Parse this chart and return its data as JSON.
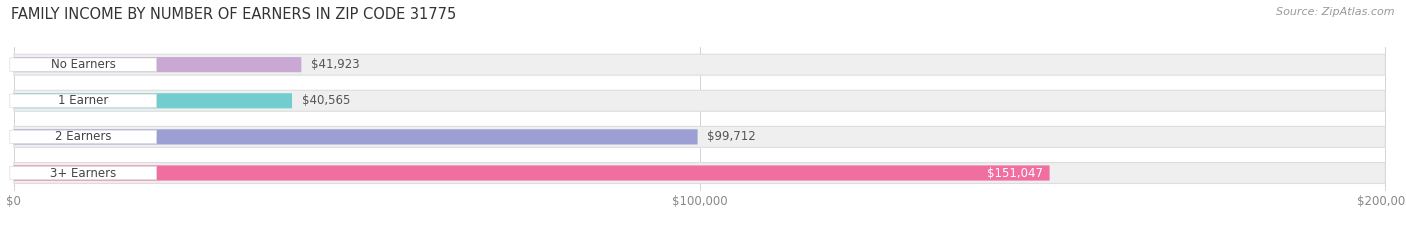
{
  "title": "FAMILY INCOME BY NUMBER OF EARNERS IN ZIP CODE 31775",
  "source": "Source: ZipAtlas.com",
  "categories": [
    "No Earners",
    "1 Earner",
    "2 Earners",
    "3+ Earners"
  ],
  "values": [
    41923,
    40565,
    99712,
    151047
  ],
  "bar_colors": [
    "#c9a8d4",
    "#72cece",
    "#9b9fd4",
    "#f06ea0"
  ],
  "bar_background": "#efefef",
  "bar_border": "#dddddd",
  "xlim": [
    0,
    200000
  ],
  "xticks": [
    0,
    100000,
    200000
  ],
  "xtick_labels": [
    "$0",
    "$100,000",
    "$200,000"
  ],
  "fig_width": 14.06,
  "fig_height": 2.33,
  "dpi": 100,
  "title_fontsize": 10.5,
  "source_fontsize": 8,
  "label_fontsize": 8.5,
  "value_fontsize": 8.5,
  "background_color": "#ffffff",
  "value_inside_threshold": 130000,
  "value_inside_color": "#ffffff",
  "value_outside_color": "#555555"
}
